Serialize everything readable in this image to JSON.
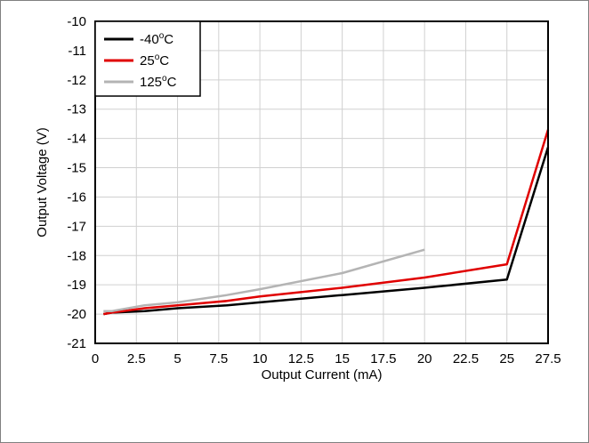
{
  "chart_data": {
    "type": "line",
    "title": "",
    "xlabel": "Output Current (mA)",
    "ylabel": "Output Voltage (V)",
    "xlim": [
      0,
      27.5
    ],
    "ylim": [
      -21,
      -10
    ],
    "xticks": [
      0,
      2.5,
      5,
      7.5,
      10,
      12.5,
      15,
      17.5,
      20,
      22.5,
      25,
      27.5
    ],
    "xtick_labels": [
      "0",
      "2.5",
      "5",
      "7.5",
      "10",
      "12.5",
      "15",
      "17.5",
      "20",
      "22.5",
      "25",
      "27.5"
    ],
    "yticks": [
      -10,
      -11,
      -12,
      -13,
      -14,
      -15,
      -16,
      -17,
      -18,
      -19,
      -20,
      -21
    ],
    "ytick_labels": [
      "-10",
      "-11",
      "-12",
      "-13",
      "-14",
      "-15",
      "-16",
      "-17",
      "-18",
      "-19",
      "-20",
      "-21"
    ],
    "grid": true,
    "legend_position": "top-left",
    "series": [
      {
        "name": "-40°C",
        "label_prefix": "-40",
        "label_sup": "o",
        "label_suffix": "C",
        "color": "#000000",
        "x": [
          0.5,
          1,
          3,
          5,
          8,
          10,
          15,
          20,
          25,
          27.5
        ],
        "y": [
          -20.0,
          -19.95,
          -19.9,
          -19.8,
          -19.7,
          -19.6,
          -19.35,
          -19.1,
          -18.82,
          -14.3
        ]
      },
      {
        "name": "25°C",
        "label_prefix": "25",
        "label_sup": "o",
        "label_suffix": "C",
        "color": "#e00000",
        "x": [
          0.5,
          1,
          3,
          5,
          8,
          10,
          15,
          20,
          25,
          27.5
        ],
        "y": [
          -20.0,
          -19.95,
          -19.8,
          -19.7,
          -19.55,
          -19.4,
          -19.1,
          -18.75,
          -18.3,
          -13.7
        ]
      },
      {
        "name": "125°C",
        "label_prefix": "125",
        "label_sup": "o",
        "label_suffix": "C",
        "color": "#b4b4b4",
        "x": [
          0.5,
          1,
          3,
          5,
          8,
          10,
          15,
          20
        ],
        "y": [
          -19.9,
          -19.9,
          -19.7,
          -19.6,
          -19.35,
          -19.15,
          -18.6,
          -17.8
        ]
      }
    ]
  }
}
